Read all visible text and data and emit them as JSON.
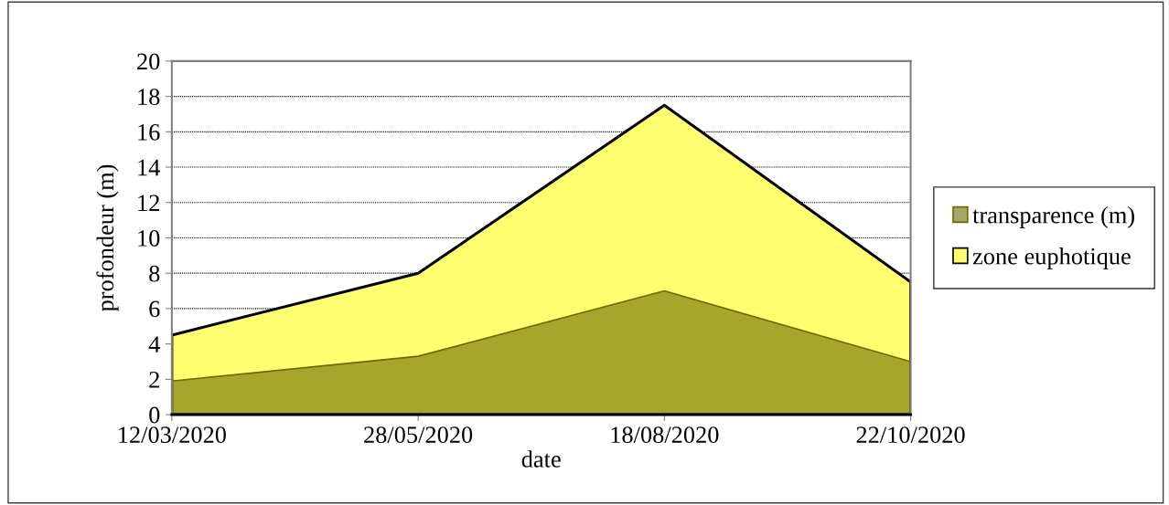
{
  "chart_data": {
    "type": "area",
    "xlabel": "date",
    "ylabel": "profondeur (m)",
    "categories": [
      "12/03/2020",
      "28/05/2020",
      "18/08/2020",
      "22/10/2020"
    ],
    "series": [
      {
        "name": "transparence (m)",
        "color": "#6b6b00",
        "values": [
          1.9,
          3.3,
          7.0,
          3.0
        ]
      },
      {
        "name": "zone euphotique",
        "color": "#ffff70",
        "values": [
          4.5,
          8.0,
          17.5,
          7.5
        ]
      }
    ],
    "ylim": [
      0,
      20
    ],
    "yticks": [
      0,
      2,
      4,
      6,
      8,
      10,
      12,
      14,
      16,
      18,
      20
    ],
    "grid": "y",
    "legend": "right"
  }
}
